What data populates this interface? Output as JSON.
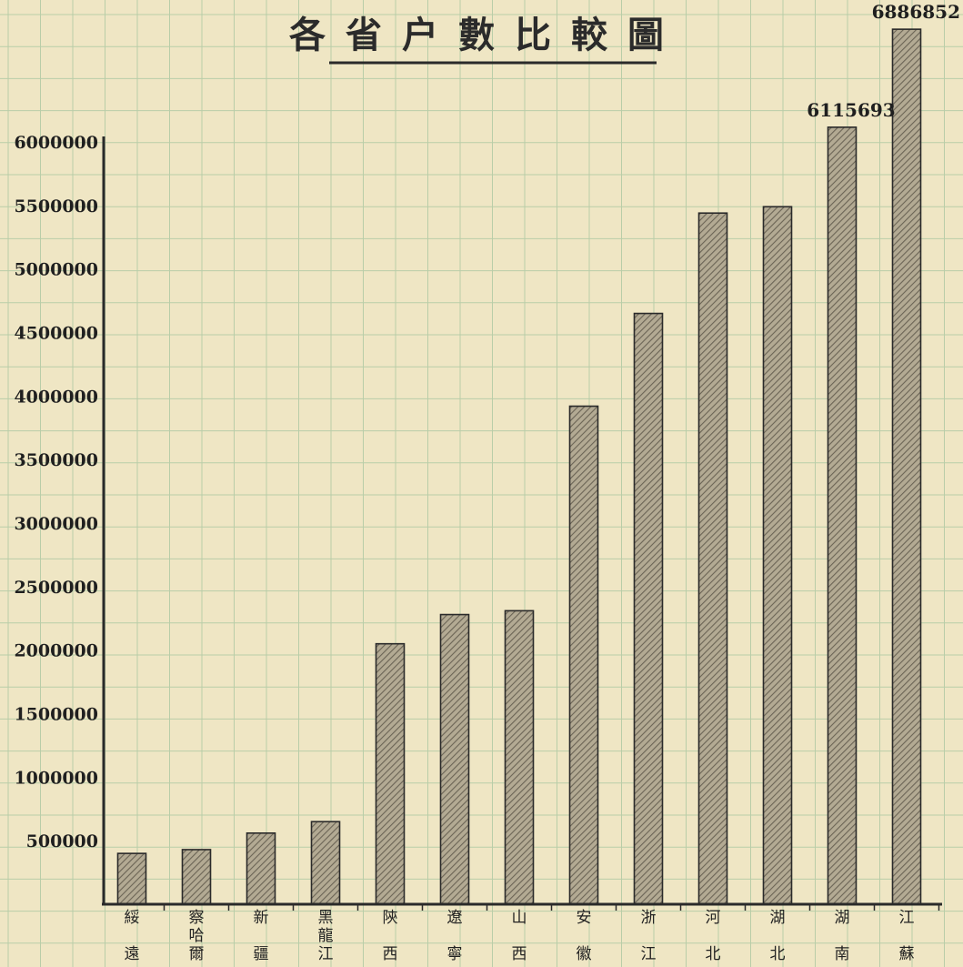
{
  "chart_data": {
    "type": "bar",
    "title": "各省户數比較圖",
    "xlabel": "",
    "ylabel": "",
    "ylim": [
      0,
      7000000
    ],
    "yticks": [
      500000,
      1000000,
      1500000,
      2000000,
      2500000,
      3000000,
      3500000,
      4000000,
      4500000,
      5000000,
      5500000,
      6000000
    ],
    "ytick_labels": [
      "500000",
      "1000000",
      "1500000",
      "2000000",
      "2500000",
      "3000000",
      "3500000",
      "4000000",
      "4500000",
      "5000000",
      "5500000",
      "6000000"
    ],
    "grid": true,
    "categories": [
      "綏遠",
      "察哈爾",
      "新疆",
      "黑龍江",
      "陝西",
      "遼寧",
      "山西",
      "安徽",
      "浙江",
      "河北",
      "湖北",
      "湖南",
      "江蘇"
    ],
    "values": [
      400000,
      430000,
      560000,
      650000,
      2050000,
      2280000,
      2310000,
      3920000,
      4650000,
      5440000,
      5490000,
      6115693,
      6886852
    ],
    "data_labels": [
      {
        "category": "湖南",
        "text": "6115693"
      },
      {
        "category": "江蘇",
        "text": "6886852"
      }
    ],
    "colors": {
      "bar_fill": "#b3aa93",
      "bar_hatch": "#6b6455",
      "bar_edge": "#2a2a2a",
      "grid": "#b9cda8",
      "axis": "#2a2a2a",
      "paper": "#efe6c4"
    }
  }
}
